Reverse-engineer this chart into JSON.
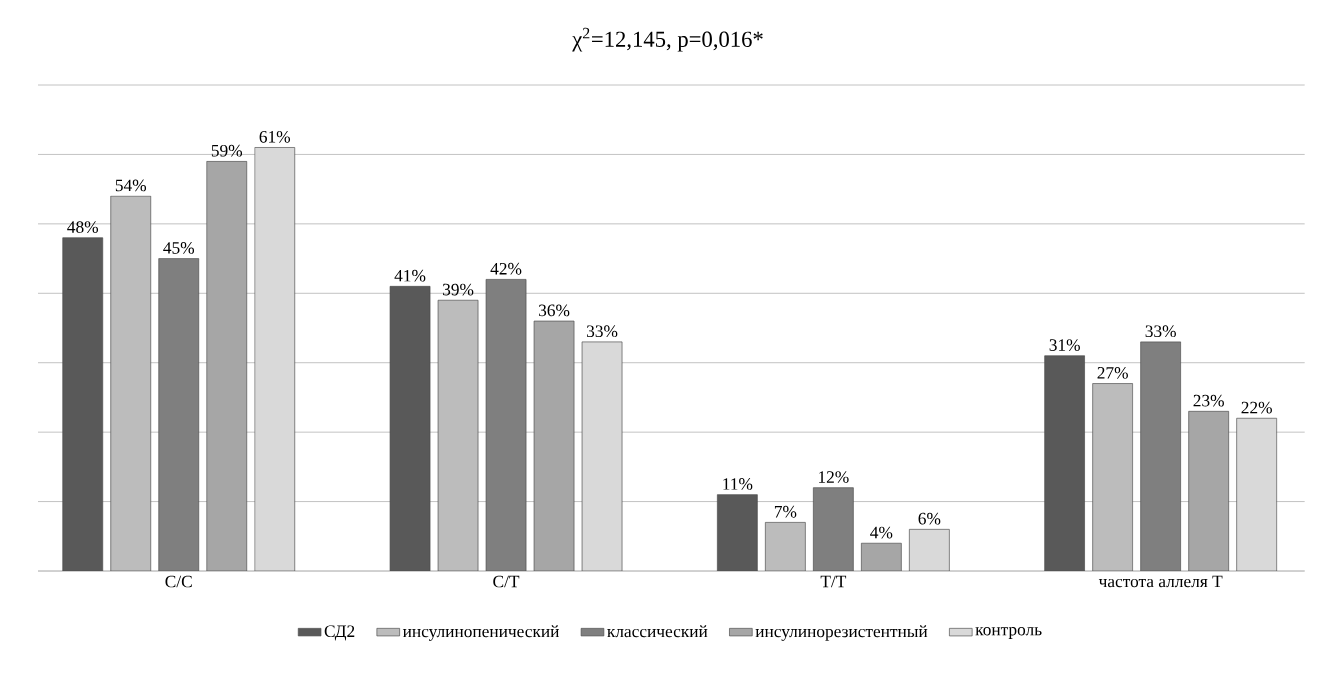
{
  "chart_data": {
    "type": "bar",
    "title": "χ$^{2}$=12,145, p=0,016*",
    "categories": [
      "C/C",
      "C/T",
      "T/T",
      "частота аллеля T"
    ],
    "series": [
      {
        "name": "СД2",
        "color": "#595959",
        "values": [
          48,
          41,
          11,
          31
        ],
        "value_labels": [
          "48%",
          "41%",
          "11%",
          "31%"
        ]
      },
      {
        "name": "инсулинопенический",
        "color": "#bcbcbc",
        "values": [
          54,
          39,
          7,
          27
        ],
        "value_labels": [
          "54%",
          "39%",
          "7%",
          "27%"
        ]
      },
      {
        "name": "классический",
        "color": "#7f7f7f",
        "values": [
          45,
          42,
          12,
          33
        ],
        "value_labels": [
          "45%",
          "42%",
          "12%",
          "33%"
        ]
      },
      {
        "name": "инсулинорезистентный",
        "color": "#a6a6a6",
        "values": [
          59,
          36,
          4,
          23
        ],
        "value_labels": [
          "59%",
          "36%",
          "4%",
          "23%"
        ]
      },
      {
        "name": "контроль",
        "color": "#d9d9d9",
        "values": [
          61,
          33,
          6,
          22
        ],
        "value_labels": [
          "61%",
          "33%",
          "6%",
          "22%"
        ]
      }
    ],
    "ylim": [
      0,
      70
    ],
    "yticks": [
      0,
      10,
      20,
      30,
      40,
      50,
      60,
      70
    ],
    "grid": "y",
    "tick_labels": "x",
    "legend": "bottom"
  }
}
